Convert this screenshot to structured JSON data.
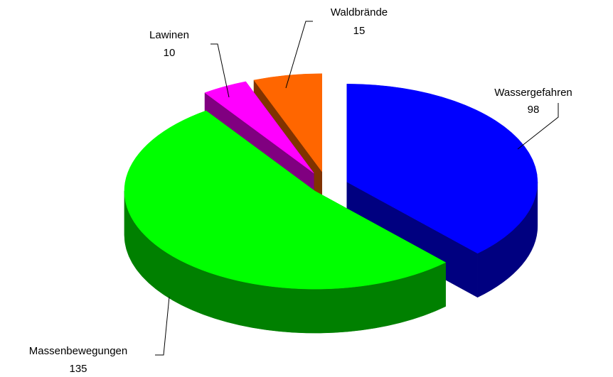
{
  "chart_data": {
    "type": "pie3d",
    "categories": [
      "Wassergefahren",
      "Massenbewegungen",
      "Lawinen",
      "Waldbrände"
    ],
    "values": [
      98,
      135,
      10,
      15
    ],
    "colors": [
      "#0000ff",
      "#00ff00",
      "#ff00ff",
      "#ff6600"
    ]
  }
}
